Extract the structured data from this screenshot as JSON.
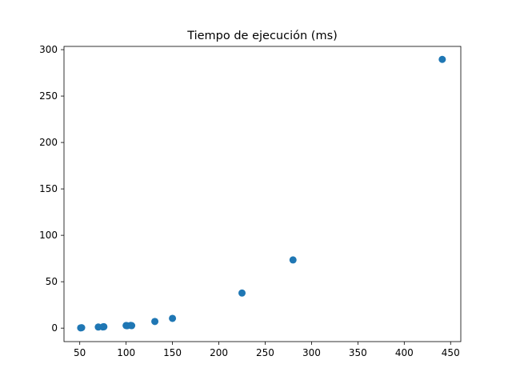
{
  "chart_data": {
    "type": "scatter",
    "title": "Tiempo de ejecución (ms)",
    "xlabel": "",
    "ylabel": "",
    "xlim": [
      33,
      461
    ],
    "ylim": [
      -14.5,
      303.5
    ],
    "xticks": [
      50,
      100,
      150,
      200,
      250,
      300,
      350,
      400,
      450
    ],
    "yticks": [
      0,
      50,
      100,
      150,
      200,
      250,
      300
    ],
    "grid": false,
    "series": [
      {
        "color": "#1f77b4",
        "points": [
          {
            "x": 51,
            "y": 0.3
          },
          {
            "x": 52,
            "y": 0.5
          },
          {
            "x": 70,
            "y": 1.2
          },
          {
            "x": 75,
            "y": 1.3
          },
          {
            "x": 76,
            "y": 1.5
          },
          {
            "x": 100,
            "y": 2.8
          },
          {
            "x": 101,
            "y": 2.6
          },
          {
            "x": 105,
            "y": 3.0
          },
          {
            "x": 106,
            "y": 2.7
          },
          {
            "x": 131,
            "y": 7.2
          },
          {
            "x": 150,
            "y": 10.5
          },
          {
            "x": 225,
            "y": 37.8
          },
          {
            "x": 280,
            "y": 73.5
          },
          {
            "x": 441,
            "y": 289.5
          }
        ]
      }
    ]
  }
}
